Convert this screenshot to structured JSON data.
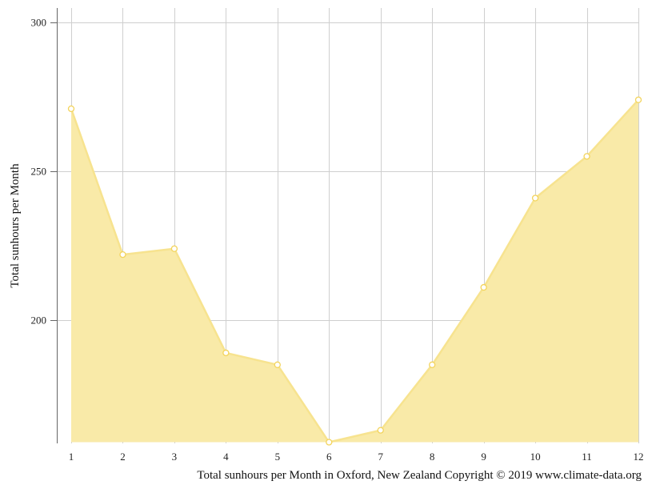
{
  "chart_data": {
    "type": "area",
    "x": [
      1,
      2,
      3,
      4,
      5,
      6,
      7,
      8,
      9,
      10,
      11,
      12
    ],
    "series": [
      {
        "values": [
          271,
          222,
          224,
          189,
          185,
          159,
          163,
          185,
          211,
          241,
          255,
          274
        ]
      }
    ],
    "ylabel": "Total sunhours per Month",
    "xlabel": "Total sunhours per Month in Oxford, New Zealand Copyright © 2019 www.climate-data.org",
    "ylim": [
      159,
      304
    ],
    "yticks": [
      200,
      250,
      300
    ],
    "grid": true,
    "colors": {
      "fill": "#f9eaa8",
      "line": "#f7e38f",
      "marker_stroke": "#f3d45c"
    }
  }
}
